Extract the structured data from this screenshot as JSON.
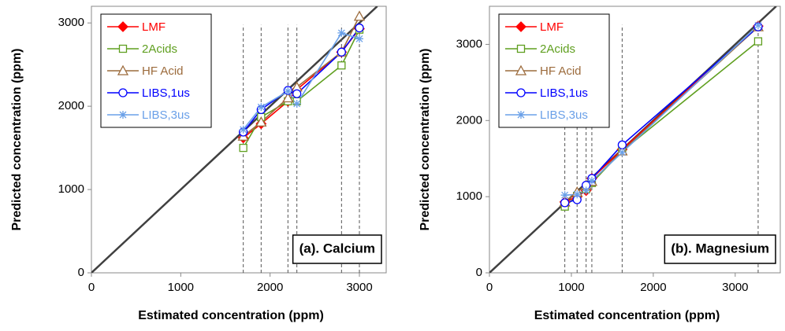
{
  "chart_data": [
    {
      "type": "line",
      "annotation": "(a). Calcium",
      "x_label": "Estimated concentration (ppm)",
      "y_label": "Predicted concentration (ppm)",
      "x": [
        1700,
        1900,
        2200,
        2300,
        2800,
        3000
      ],
      "xlim": [
        0,
        3300
      ],
      "ylim": [
        0,
        3200
      ],
      "xticks": [
        0,
        1000,
        2000,
        3000
      ],
      "yticks": [
        0,
        1000,
        2000,
        3000
      ],
      "diagonal": true,
      "reference_lines": true,
      "legend": "upper left",
      "series": [
        {
          "name": "LMF",
          "color": "#ff0000",
          "marker": "diamond",
          "values": [
            1620,
            1790,
            2060,
            2200,
            2650,
            2930
          ]
        },
        {
          "name": "2Acids",
          "color": "#5f9f1f",
          "marker": "square",
          "values": [
            1500,
            1870,
            2060,
            2060,
            2490,
            2920
          ]
        },
        {
          "name": "HF Acid",
          "color": "#9c6b3c",
          "marker": "triangle",
          "values": [
            1640,
            1810,
            2100,
            2230,
            2650,
            3080
          ]
        },
        {
          "name": "LIBS,1us",
          "color": "#0000ff",
          "marker": "circle",
          "values": [
            1690,
            1960,
            2190,
            2150,
            2650,
            2940
          ]
        },
        {
          "name": "LIBS,3us",
          "color": "#6aa0e8",
          "marker": "star",
          "values": [
            1720,
            1990,
            2180,
            2030,
            2880,
            2810
          ]
        }
      ]
    },
    {
      "type": "line",
      "annotation": "(b). Magnesium",
      "x_label": "Estimated concentration (ppm)",
      "y_label": "Predicted concentration (ppm)",
      "x": [
        920,
        1070,
        1180,
        1250,
        1620,
        3280
      ],
      "xlim": [
        0,
        3550
      ],
      "ylim": [
        0,
        3500
      ],
      "xticks": [
        0,
        1000,
        2000,
        3000
      ],
      "yticks": [
        0,
        1000,
        2000,
        3000
      ],
      "diagonal": true,
      "reference_lines": true,
      "legend": "upper left",
      "series": [
        {
          "name": "LMF",
          "color": "#ff0000",
          "marker": "diamond",
          "values": [
            930,
            1000,
            1080,
            1240,
            1620,
            3240
          ]
        },
        {
          "name": "2Acids",
          "color": "#5f9f1f",
          "marker": "square",
          "values": [
            870,
            1010,
            1100,
            1180,
            1600,
            3040
          ]
        },
        {
          "name": "HF Acid",
          "color": "#9c6b3c",
          "marker": "triangle",
          "values": [
            930,
            1060,
            1150,
            1200,
            1600,
            3230
          ]
        },
        {
          "name": "LIBS,1us",
          "color": "#0000ff",
          "marker": "circle",
          "values": [
            920,
            960,
            1150,
            1240,
            1680,
            3230
          ]
        },
        {
          "name": "LIBS,3us",
          "color": "#6aa0e8",
          "marker": "star",
          "values": [
            1020,
            1030,
            1080,
            1210,
            1580,
            3250
          ]
        }
      ]
    }
  ]
}
